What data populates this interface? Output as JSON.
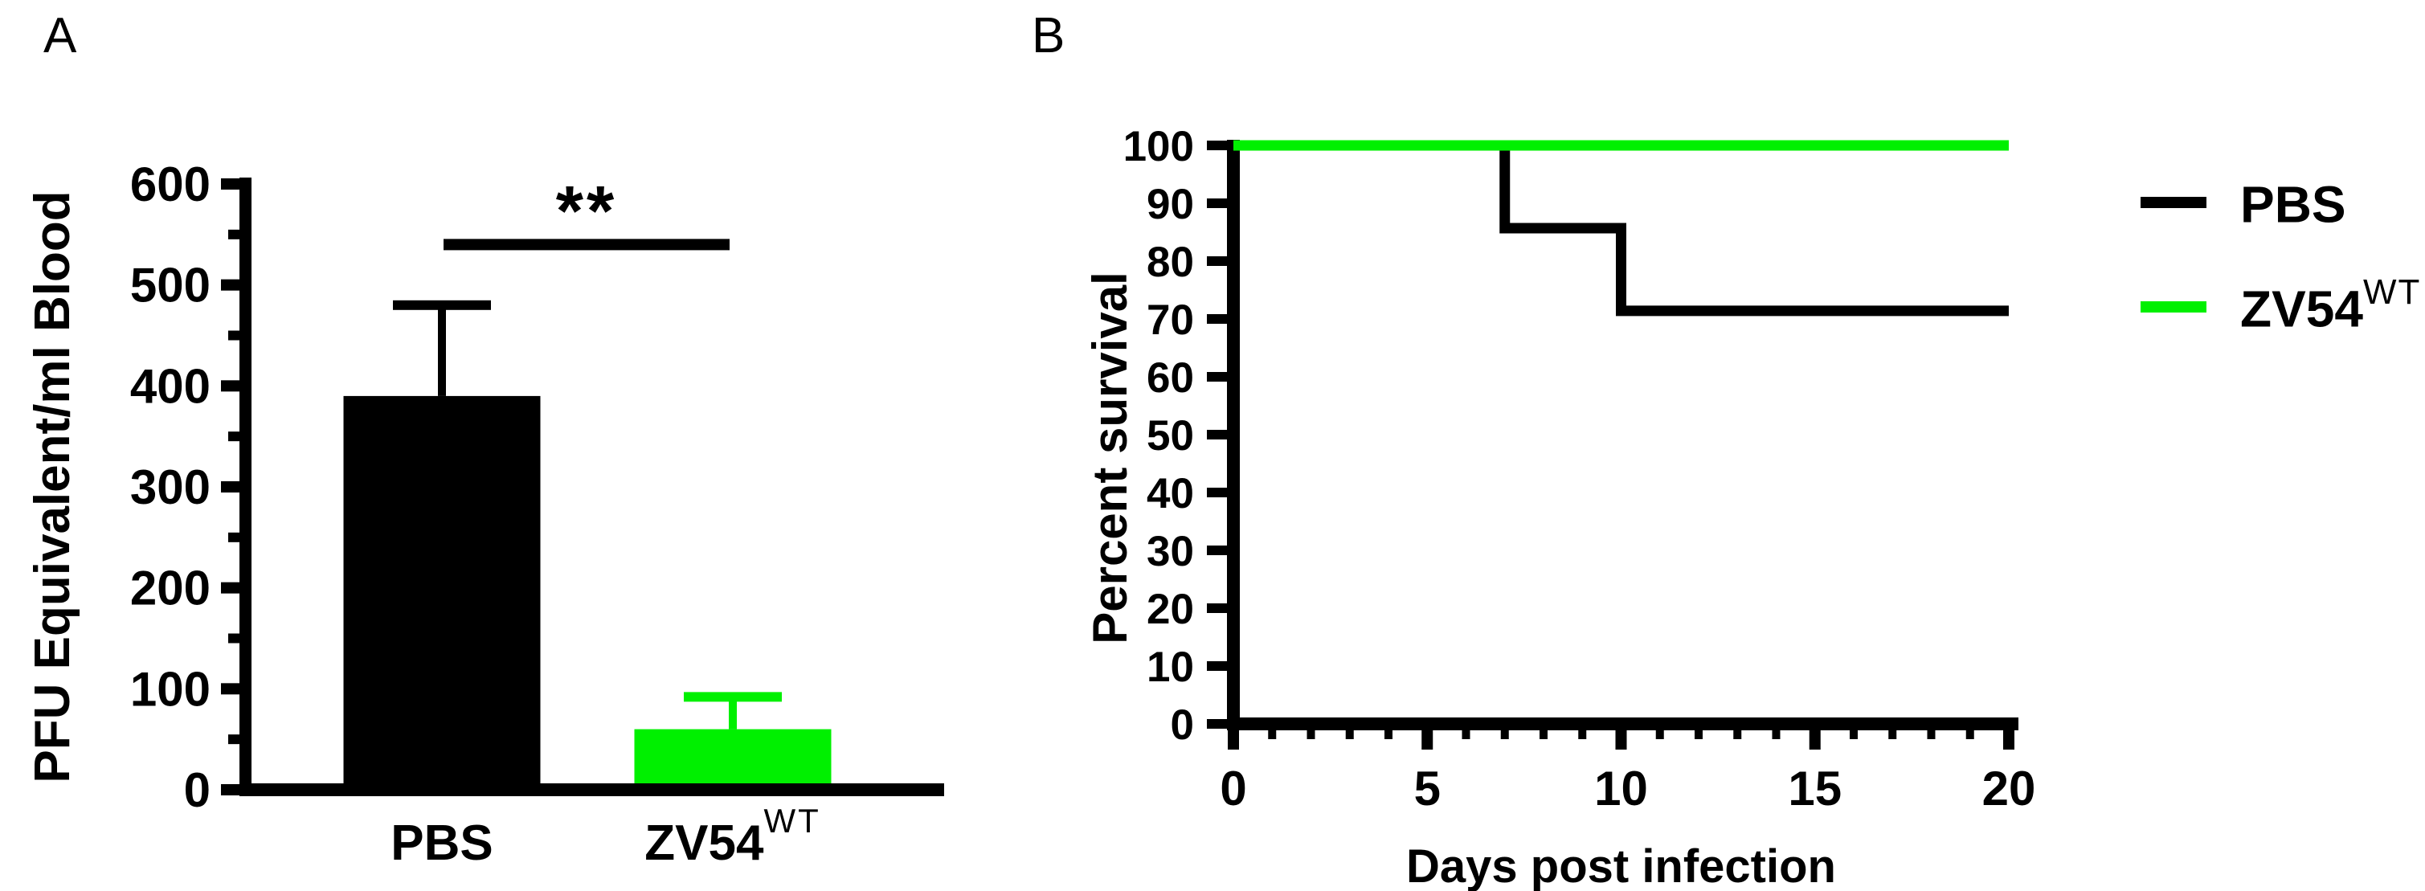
{
  "panels": {
    "a": "A",
    "b": "B"
  },
  "colors": {
    "black": "#000000",
    "green": "#00F000",
    "background": "#FFFFFF"
  },
  "legend": {
    "entries": [
      {
        "base": "PBS",
        "sup": "",
        "color": "#000000"
      },
      {
        "base": "ZV54",
        "sup": "WT",
        "color": "#00F000"
      }
    ]
  },
  "chart_data": [
    {
      "id": "viremia-bar-chart",
      "panel": "A",
      "type": "bar",
      "title": "",
      "xlabel": "",
      "ylabel": "PFU Equivalent/ml Blood",
      "ylim": [
        0,
        600
      ],
      "yticks": [
        0,
        100,
        200,
        300,
        400,
        500,
        600
      ],
      "yminor_ticks": [
        50,
        150,
        250,
        350,
        450,
        550
      ],
      "categories": [
        {
          "base": "PBS",
          "sup": ""
        },
        {
          "base": "ZV54",
          "sup": "WT"
        }
      ],
      "values": [
        390,
        60
      ],
      "error_up": [
        90,
        32
      ],
      "bar_colors": [
        "#000000",
        "#00F000"
      ],
      "significance": {
        "label": "**",
        "line_y_value": 540
      },
      "grid": "off"
    },
    {
      "id": "survival-curve",
      "panel": "B",
      "type": "line",
      "title": "",
      "xlabel": "Days post infection",
      "ylabel": "Percent survival",
      "xlim": [
        0,
        20
      ],
      "ylim": [
        0,
        100
      ],
      "xticks": [
        0,
        5,
        10,
        15,
        20
      ],
      "xminor_step": 1,
      "yticks": [
        0,
        10,
        20,
        30,
        40,
        50,
        60,
        70,
        80,
        90,
        100
      ],
      "series": [
        {
          "name": "PBS",
          "color": "#000000",
          "x": [
            0,
            7,
            7,
            10,
            10,
            20
          ],
          "y": [
            100,
            100,
            85.7,
            85.7,
            71.4,
            71.4
          ]
        },
        {
          "name": "ZV54WT",
          "color": "#00F000",
          "x": [
            0,
            20
          ],
          "y": [
            100,
            100
          ]
        }
      ],
      "legend_position": "right",
      "grid": "off"
    }
  ]
}
